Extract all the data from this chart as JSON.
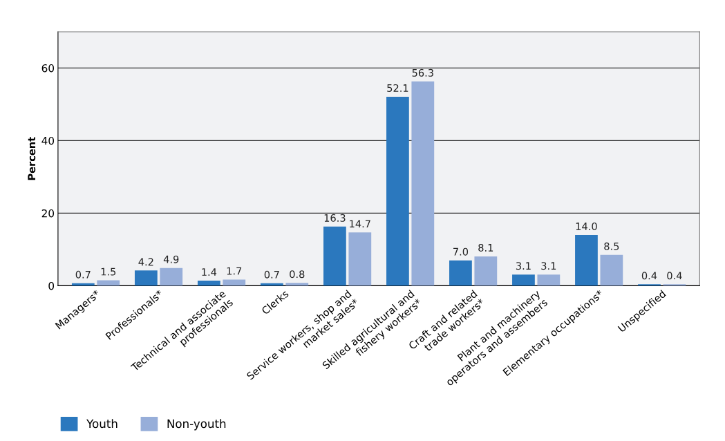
{
  "chart_data": {
    "type": "bar",
    "ylabel": "Percent",
    "categories": [
      "Managers*",
      "Professionals*",
      "Technical and associate\nprofessionals",
      "Clerks",
      "Service workers, shop and\nmarket sales*",
      "Skilled agricultural and\nfishery workers*",
      "Craft and related\ntrade workers*",
      "Plant and machinery\noperators and assembers",
      "Elementary occupations*",
      "Unspecified"
    ],
    "series": [
      {
        "name": "Youth",
        "color": "#2b78be",
        "values": [
          0.7,
          4.2,
          1.4,
          0.7,
          16.3,
          52.1,
          7.0,
          3.1,
          14.0,
          0.4
        ],
        "value_labels": [
          "0.7",
          "4.2",
          "1.4",
          "0.7",
          "16.3",
          "52.1",
          "7.0",
          "3.1",
          "14.0",
          "0.4"
        ]
      },
      {
        "name": "Non-youth",
        "color": "#97aed9",
        "values": [
          1.5,
          4.9,
          1.7,
          0.8,
          14.7,
          56.3,
          8.1,
          3.1,
          8.5,
          0.4
        ],
        "value_labels": [
          "1.5",
          "4.9",
          "1.7",
          "0.8",
          "14.7",
          "56.3",
          "8.1",
          "3.1",
          "8.5",
          "0.4"
        ]
      }
    ],
    "ylim": [
      0,
      70
    ],
    "yticks": [
      0,
      20,
      40,
      60
    ],
    "grid": "y",
    "legend": "bottom left"
  }
}
